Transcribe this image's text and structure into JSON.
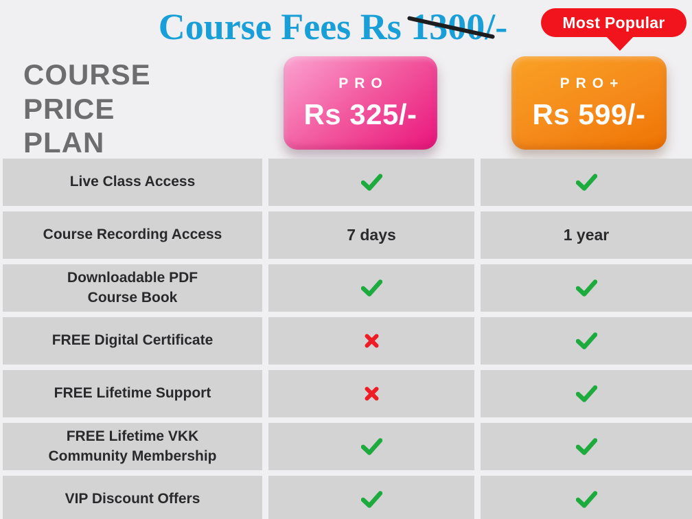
{
  "header": {
    "title": {
      "prefix": "Course Fees Rs ",
      "struck": "1300",
      "suffix": "/-",
      "color": "#189fd7"
    },
    "badge": {
      "label": "Most Popular",
      "color": "#f2141c"
    },
    "plan_heading": {
      "text": "COURSE\nPRICE\nPLAN",
      "color": "#6d6d70"
    }
  },
  "plans": [
    {
      "name": "PRO",
      "price": "Rs 325/-",
      "color_top": "#fba3d2",
      "color_bottom": "#e9147a"
    },
    {
      "name": "PRO+",
      "price": "Rs 599/-",
      "color_top": "#f9a125",
      "color_bottom": "#ee7303",
      "tag": "Most Popular"
    }
  ],
  "table": {
    "marks": {
      "check_color": "#1cab3c",
      "cross_color": "#ee1c25"
    },
    "cell_background": "#d3d3d4",
    "rows": [
      {
        "feature": "Live Class Access",
        "pro": {
          "kind": "check"
        },
        "pro_plus": {
          "kind": "check"
        }
      },
      {
        "feature": "Course Recording Access",
        "pro": {
          "kind": "text",
          "value": "7 days"
        },
        "pro_plus": {
          "kind": "text",
          "value": "1 year"
        }
      },
      {
        "feature": "Downloadable PDF\nCourse Book",
        "pro": {
          "kind": "check"
        },
        "pro_plus": {
          "kind": "check"
        }
      },
      {
        "feature": "FREE Digital Certificate",
        "pro": {
          "kind": "cross"
        },
        "pro_plus": {
          "kind": "check"
        }
      },
      {
        "feature": "FREE Lifetime Support",
        "pro": {
          "kind": "cross"
        },
        "pro_plus": {
          "kind": "check"
        }
      },
      {
        "feature": "FREE Lifetime VKK\nCommunity Membership",
        "pro": {
          "kind": "check"
        },
        "pro_plus": {
          "kind": "check"
        }
      },
      {
        "feature": "VIP Discount Offers",
        "pro": {
          "kind": "check"
        },
        "pro_plus": {
          "kind": "check"
        }
      }
    ]
  }
}
